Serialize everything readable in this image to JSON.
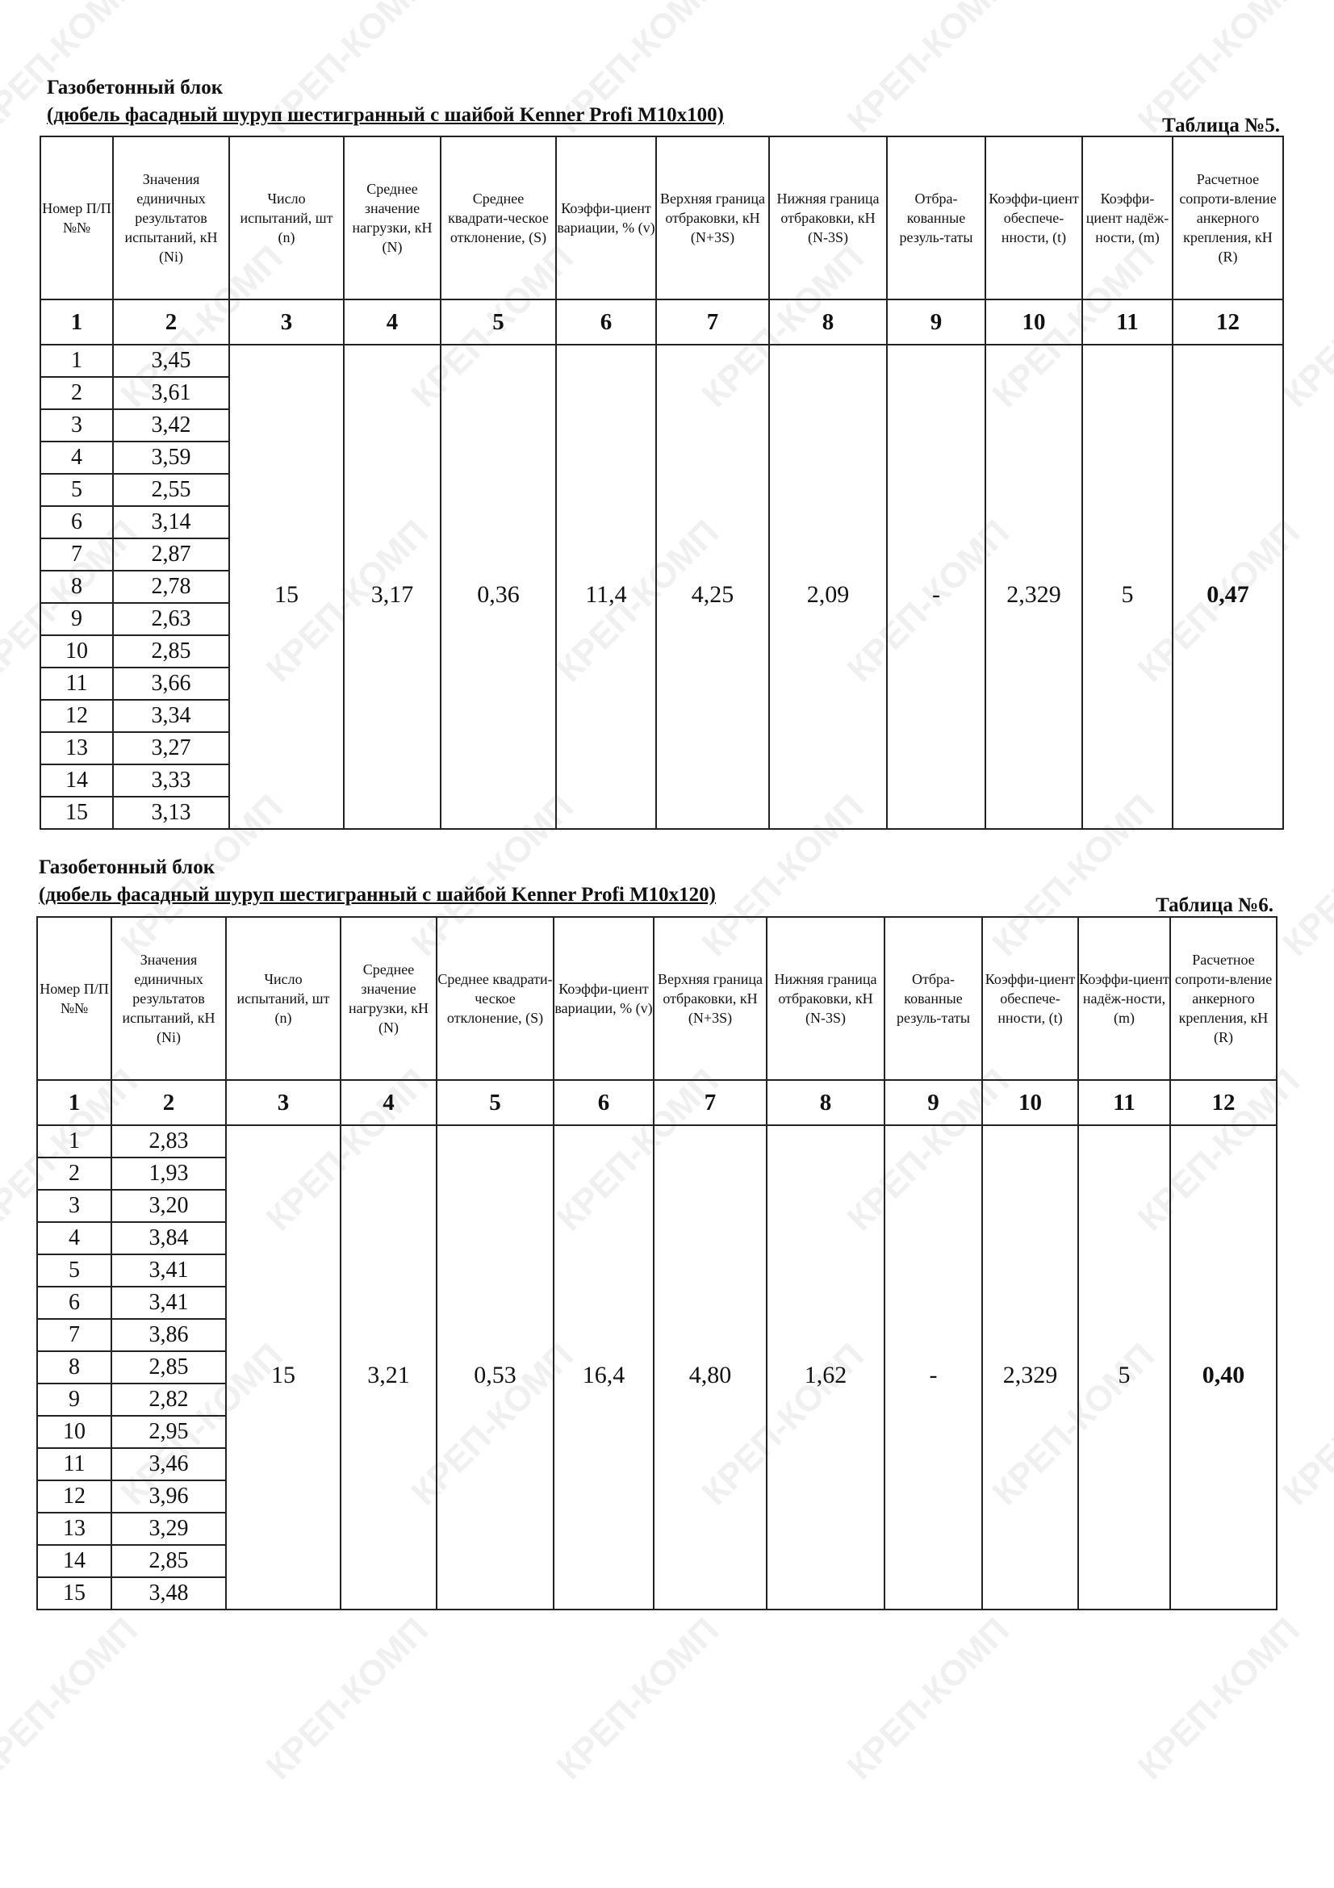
{
  "watermark": "КРЕП-КОМП",
  "headers": [
    "Номер П/П №№",
    "Значения единичных результатов испытаний, кН (Ni)",
    "Число испытаний, шт (n)",
    "Среднее значение нагрузки, кН (N)",
    "Среднее квадрати-ческое отклонение, (S)",
    "Коэффи-циент вариации, % (v)",
    "Верхняя граница отбраковки, кН (N+3S)",
    "Нижняя граница отбраковки, кН (N-3S)",
    "Отбра-кованные резуль-таты",
    "Коэффи-циент обеспече-нности, (t)",
    "Коэффи-циент надёж-ности, (m)",
    "Расчетное сопроти-вление анкерного крепления, кН (R)"
  ],
  "column_numbers": [
    "1",
    "2",
    "3",
    "4",
    "5",
    "6",
    "7",
    "8",
    "9",
    "10",
    "11",
    "12"
  ],
  "tables": [
    {
      "title_line1": "Газобетонный блок",
      "title_line2": "(дюбель фасадный шуруп шестигранный с шайбой Kenner Profi M10x100)",
      "table_number": "Таблица №5.",
      "rows": [
        [
          "1",
          "3,45"
        ],
        [
          "2",
          "3,61"
        ],
        [
          "3",
          "3,42"
        ],
        [
          "4",
          "3,59"
        ],
        [
          "5",
          "2,55"
        ],
        [
          "6",
          "3,14"
        ],
        [
          "7",
          "2,87"
        ],
        [
          "8",
          "2,78"
        ],
        [
          "9",
          "2,63"
        ],
        [
          "10",
          "2,85"
        ],
        [
          "11",
          "3,66"
        ],
        [
          "12",
          "3,34"
        ],
        [
          "13",
          "3,27"
        ],
        [
          "14",
          "3,33"
        ],
        [
          "15",
          "3,13"
        ]
      ],
      "summary": [
        "15",
        "3,17",
        "0,36",
        "11,4",
        "4,25",
        "2,09",
        "-",
        "2,329",
        "5",
        "0,47"
      ]
    },
    {
      "title_line1": "Газобетонный блок",
      "title_line2": "(дюбель фасадный шуруп шестигранный с шайбой Kenner Profi M10x120)",
      "table_number": "Таблица №6.",
      "rows": [
        [
          "1",
          "2,83"
        ],
        [
          "2",
          "1,93"
        ],
        [
          "3",
          "3,20"
        ],
        [
          "4",
          "3,84"
        ],
        [
          "5",
          "3,41"
        ],
        [
          "6",
          "3,41"
        ],
        [
          "7",
          "3,86"
        ],
        [
          "8",
          "2,85"
        ],
        [
          "9",
          "2,82"
        ],
        [
          "10",
          "2,95"
        ],
        [
          "11",
          "3,46"
        ],
        [
          "12",
          "3,96"
        ],
        [
          "13",
          "3,29"
        ],
        [
          "14",
          "2,85"
        ],
        [
          "15",
          "3,48"
        ]
      ],
      "summary": [
        "15",
        "3,21",
        "0,53",
        "16,4",
        "4,80",
        "1,62",
        "-",
        "2,329",
        "5",
        "0,40"
      ]
    }
  ]
}
